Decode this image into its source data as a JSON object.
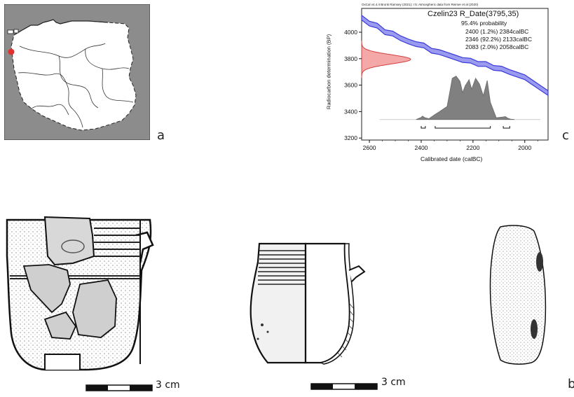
{
  "panels": {
    "a": {
      "letter": "a"
    },
    "b": {
      "letter": "b"
    },
    "c": {
      "letter": "c"
    }
  },
  "colors": {
    "map_bg": "#8c8c8c",
    "site_dot": "#e03030",
    "curve": "#3a3ad8",
    "prior": "#f08080",
    "posterior": "#808080"
  },
  "scale_bars": [
    {
      "label": "3 cm"
    },
    {
      "label": "3 cm"
    }
  ],
  "chart_data": {
    "type": "area",
    "header": "OxCal v4.4.4 Bronk Ramsey (2021); r:5; Atmospheric data from Reimer et al (2020)",
    "title": "Czelin23 R_Date(3795,35)",
    "probability_label": "95.4% probability",
    "ranges": [
      "2400 (1.2%) 2384calBC",
      "2346 (92.2%) 2133calBC",
      "2083 (2.0%) 2058calBC"
    ],
    "xlabel": "Calibrated date (calBC)",
    "ylabel": "Radiocarbon determination (BP)",
    "x_ticks": [
      "2600",
      "2400",
      "2200",
      "2000"
    ],
    "y_ticks": [
      "3200",
      "3400",
      "3600",
      "3800",
      "4000"
    ],
    "xlim": [
      2630,
      1910
    ],
    "ylim": [
      3185,
      4180
    ],
    "radiocarbon_date": {
      "bp": 3795,
      "error": 35
    },
    "calibration_curve": {
      "x": [
        2630,
        2600,
        2570,
        2540,
        2510,
        2480,
        2450,
        2420,
        2390,
        2360,
        2330,
        2300,
        2270,
        2240,
        2210,
        2180,
        2150,
        2120,
        2090,
        2060,
        2030,
        2000,
        1970,
        1940,
        1910
      ],
      "y": [
        4110,
        4065,
        4050,
        4000,
        3990,
        3955,
        3930,
        3910,
        3900,
        3860,
        3850,
        3830,
        3810,
        3790,
        3785,
        3760,
        3760,
        3730,
        3725,
        3700,
        3680,
        3660,
        3620,
        3580,
        3540
      ]
    },
    "posterior": {
      "x": [
        2420,
        2400,
        2395,
        2385,
        2370,
        2346,
        2330,
        2300,
        2290,
        2280,
        2265,
        2250,
        2240,
        2230,
        2215,
        2205,
        2190,
        2175,
        2160,
        2145,
        2133,
        2110,
        2083,
        2075,
        2065,
        2055,
        2040
      ],
      "y": [
        0.0,
        0.05,
        0.08,
        0.04,
        0.02,
        0.12,
        0.18,
        0.3,
        0.62,
        0.95,
        1.0,
        0.88,
        0.62,
        0.78,
        0.92,
        0.7,
        0.95,
        0.82,
        0.55,
        0.9,
        0.4,
        0.04,
        0.06,
        0.07,
        0.03,
        0.01,
        0.0
      ]
    }
  }
}
